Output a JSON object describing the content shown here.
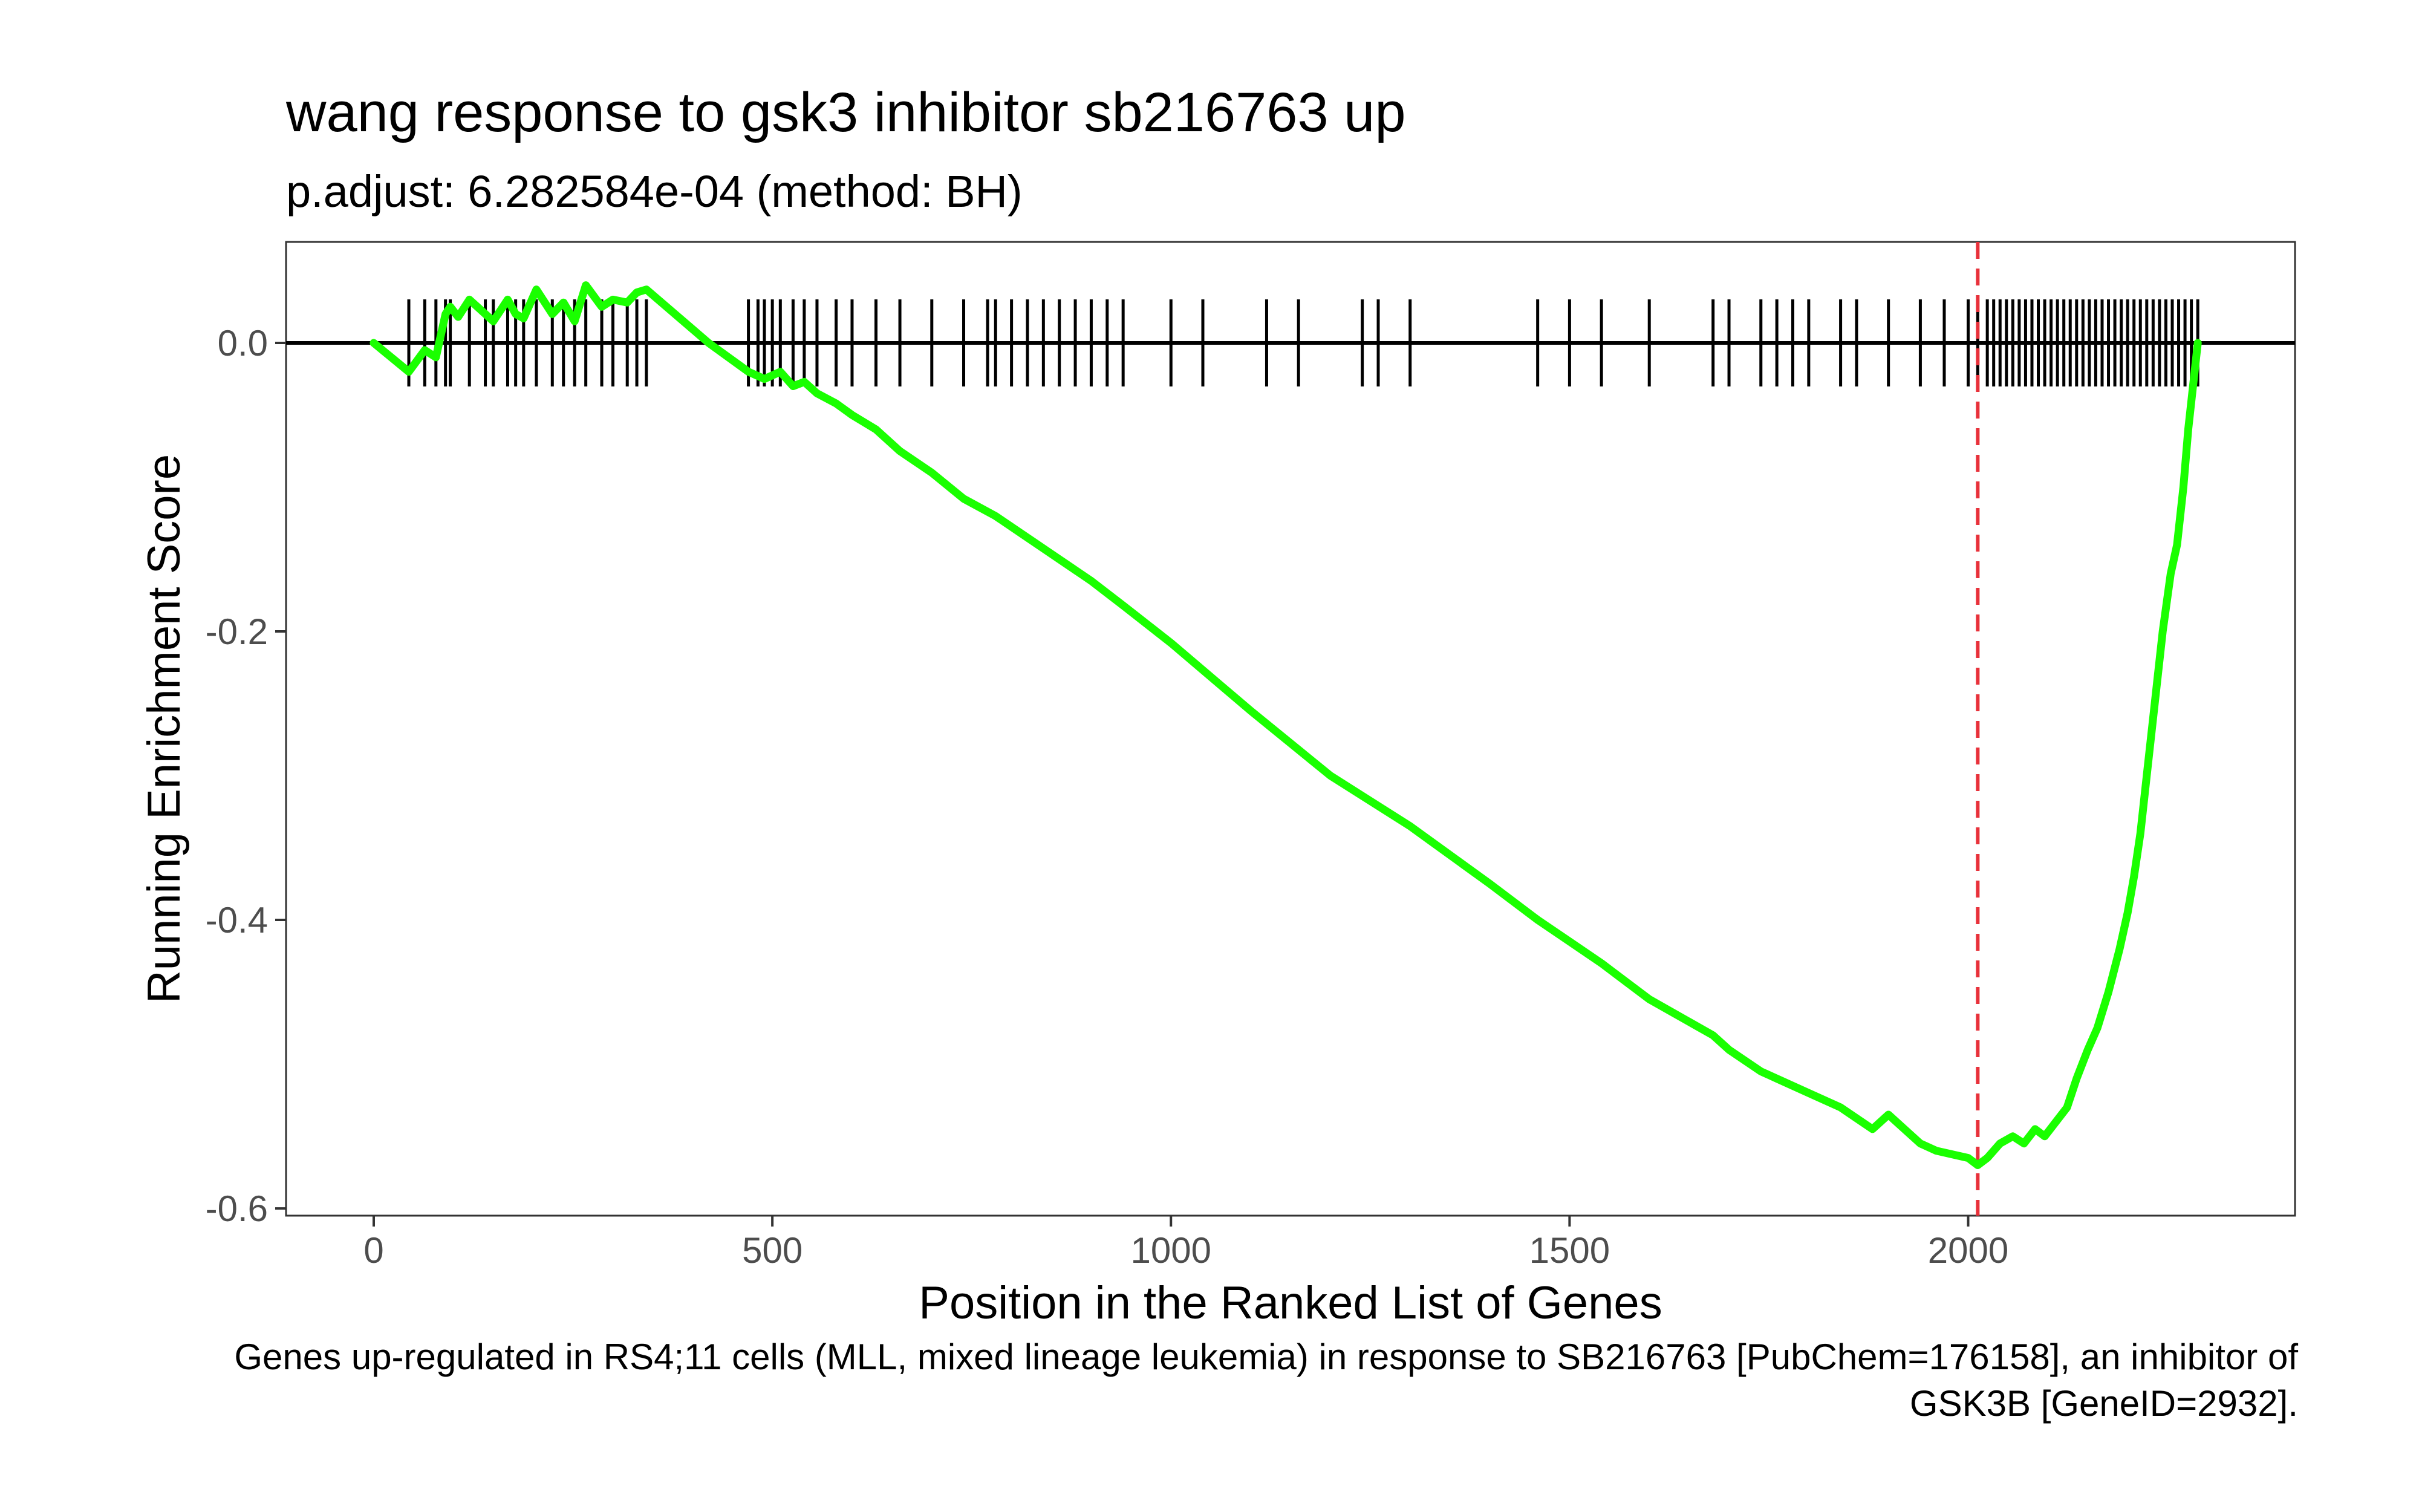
{
  "chart_data": {
    "type": "line",
    "title": "wang response to gsk3 inhibitor sb216763 up",
    "subtitle": "p.adjust: 6.282584e-04 (method: BH)",
    "caption": "Genes up-regulated in RS4;11 cells (MLL, mixed lineage leukemia) in response to SB216763 [PubChem=176158], an inhibitor of GSK3B [GeneID=2932].",
    "xlabel": "Position in the Ranked List of Genes",
    "ylabel": "Running Enrichment Score",
    "xlim": [
      -110,
      2410
    ],
    "ylim": [
      -0.605,
      0.07
    ],
    "xticks": [
      0,
      500,
      1000,
      1500,
      2000
    ],
    "xtick_labels": [
      "0",
      "500",
      "1000",
      "1500",
      "2000"
    ],
    "yticks": [
      0.0,
      -0.2,
      -0.4,
      -0.6
    ],
    "ytick_labels": [
      "0.0",
      "-0.2",
      "-0.4",
      "-0.6"
    ],
    "grid": false,
    "series": [
      {
        "color": "#1aff00",
        "x": [
          0,
          44,
          64,
          78,
          90,
          96,
          106,
          120,
          140,
          150,
          168,
          178,
          188,
          204,
          224,
          238,
          252,
          266,
          286,
          300,
          318,
          330,
          342,
          420,
          470,
          490,
          510,
          526,
          540,
          556,
          580,
          600,
          630,
          660,
          700,
          740,
          780,
          820,
          860,
          900,
          940,
          1000,
          1100,
          1200,
          1300,
          1400,
          1460,
          1500,
          1540,
          1600,
          1680,
          1700,
          1740,
          1760,
          1800,
          1840,
          1880,
          1900,
          1940,
          1960,
          2000,
          2012,
          2024,
          2040,
          2056,
          2070,
          2084,
          2096,
          2110,
          2124,
          2136,
          2150,
          2162,
          2176,
          2190,
          2200,
          2208,
          2216,
          2224,
          2234,
          2244,
          2254,
          2262,
          2270,
          2276,
          2282,
          2288
        ],
        "y": [
          0.0,
          -0.02,
          -0.005,
          -0.01,
          0.02,
          0.025,
          0.018,
          0.03,
          0.02,
          0.015,
          0.03,
          0.02,
          0.017,
          0.037,
          0.02,
          0.028,
          0.015,
          0.04,
          0.025,
          0.03,
          0.028,
          0.035,
          0.037,
          0.0,
          -0.02,
          -0.025,
          -0.02,
          -0.03,
          -0.027,
          -0.035,
          -0.042,
          -0.05,
          -0.06,
          -0.075,
          -0.09,
          -0.108,
          -0.12,
          -0.135,
          -0.15,
          -0.165,
          -0.182,
          -0.208,
          -0.255,
          -0.3,
          -0.335,
          -0.375,
          -0.4,
          -0.415,
          -0.43,
          -0.455,
          -0.48,
          -0.49,
          -0.505,
          -0.51,
          -0.52,
          -0.53,
          -0.545,
          -0.535,
          -0.555,
          -0.56,
          -0.565,
          -0.57,
          -0.565,
          -0.555,
          -0.55,
          -0.555,
          -0.545,
          -0.55,
          -0.54,
          -0.53,
          -0.51,
          -0.49,
          -0.475,
          -0.45,
          -0.42,
          -0.395,
          -0.37,
          -0.34,
          -0.3,
          -0.25,
          -0.2,
          -0.16,
          -0.14,
          -0.1,
          -0.06,
          -0.03,
          0.0
        ]
      }
    ],
    "gene_hits": [
      44,
      64,
      78,
      90,
      96,
      120,
      140,
      150,
      168,
      178,
      188,
      204,
      224,
      238,
      252,
      266,
      286,
      300,
      318,
      330,
      342,
      470,
      482,
      490,
      500,
      510,
      526,
      540,
      556,
      580,
      600,
      630,
      660,
      700,
      740,
      770,
      780,
      800,
      820,
      840,
      860,
      880,
      900,
      920,
      940,
      1000,
      1040,
      1120,
      1160,
      1240,
      1260,
      1300,
      1460,
      1500,
      1540,
      1600,
      1680,
      1700,
      1740,
      1760,
      1780,
      1800,
      1840,
      1860,
      1900,
      1940,
      1970,
      2000,
      2012,
      2024,
      2032,
      2040,
      2048,
      2056,
      2064,
      2072,
      2080,
      2088,
      2096,
      2104,
      2112,
      2120,
      2128,
      2136,
      2144,
      2152,
      2160,
      2168,
      2176,
      2184,
      2192,
      2200,
      2208,
      2216,
      2224,
      2232,
      2240,
      2248,
      2256,
      2264,
      2272,
      2280,
      2288
    ],
    "max_deviation_x": 2012,
    "max_deviation_color": "#e8313a"
  }
}
